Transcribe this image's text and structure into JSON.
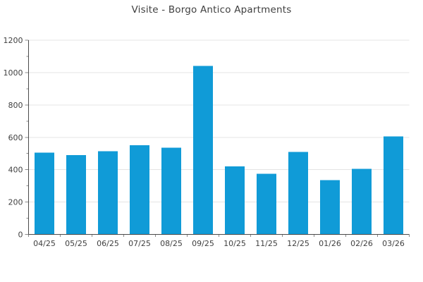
{
  "chart_data": {
    "type": "bar",
    "title": "Visite - Borgo Antico Apartments",
    "categories": [
      "04/25",
      "05/25",
      "06/25",
      "07/25",
      "08/25",
      "09/25",
      "10/25",
      "11/25",
      "12/25",
      "01/26",
      "02/26",
      "03/26"
    ],
    "values": [
      505,
      490,
      515,
      550,
      535,
      1040,
      420,
      375,
      510,
      335,
      405,
      605
    ],
    "xlabel": "",
    "ylabel": "",
    "ylim": [
      0,
      1200
    ],
    "ytick_step": 200,
    "yminor_step": 100,
    "ytick_labels": [
      "0",
      "200",
      "400",
      "600",
      "800",
      "1000",
      "1200"
    ],
    "grid": "horizontal",
    "legend": "none"
  },
  "colors": {
    "bar": "#109BD7",
    "grid": "#e4e4e4",
    "axis": "#4a4a4a",
    "tick": "#8a8a8a",
    "text": "#404040",
    "background": "#ffffff"
  }
}
